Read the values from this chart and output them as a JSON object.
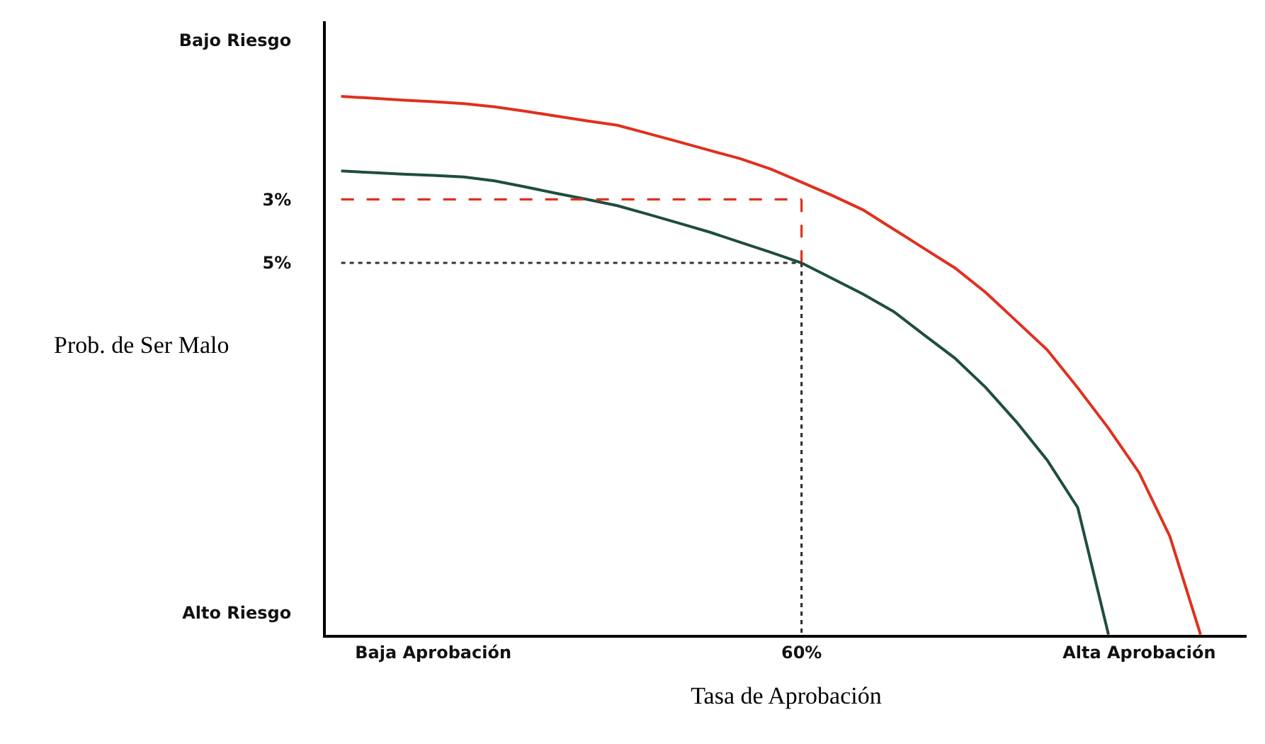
{
  "chart_data": {
    "type": "line",
    "xlabel": "Tasa de Aprobación",
    "ylabel": "Prob. de Ser Malo",
    "categories": [
      null,
      null,
      null,
      "Baja Aprobación",
      null,
      null,
      null,
      null,
      null,
      null,
      null,
      null,
      null,
      null,
      null,
      "60%",
      null,
      null,
      null,
      null,
      null,
      null,
      null,
      null,
      null,
      null,
      "Alta Aprobación",
      null,
      null,
      null
    ],
    "ylim": [
      16.7,
      -2.6
    ],
    "yticks": [
      {
        "value": -2,
        "label": "Bajo Riesgo"
      },
      {
        "value": 3,
        "label": "3%"
      },
      {
        "value": 5,
        "label": "5%"
      },
      {
        "value": 16,
        "label": "Alto Riesgo"
      }
    ],
    "grid": false,
    "marker": "none",
    "series": [
      {
        "color": "#e0301e",
        "line_style": "solid",
        "values": [
          -0.24,
          -0.18,
          -0.12,
          -0.07,
          -0.01,
          0.09,
          0.23,
          0.38,
          0.53,
          0.67,
          0.93,
          1.19,
          1.46,
          1.72,
          2.05,
          2.46,
          2.88,
          3.33,
          3.94,
          4.55,
          5.16,
          5.93,
          6.83,
          7.73,
          8.93,
          10.2,
          11.6,
          13.6,
          16.69,
          null
        ]
      },
      {
        "color": "#1f4e3d",
        "line_style": "solid",
        "values": [
          2.11,
          2.16,
          2.21,
          2.25,
          2.3,
          2.42,
          2.61,
          2.81,
          3.0,
          3.2,
          3.47,
          3.75,
          4.03,
          4.35,
          4.67,
          5.0,
          5.49,
          5.98,
          6.53,
          7.27,
          8.0,
          8.92,
          10.0,
          11.2,
          12.7,
          16.69,
          null,
          null,
          null,
          null
        ]
      },
      {
        "color": "#e0301e",
        "line_style": "dashed",
        "values": [
          3,
          3,
          3,
          3,
          3,
          3,
          3,
          3,
          3,
          3,
          3,
          3,
          3,
          3,
          3,
          3,
          null,
          null,
          null,
          null,
          null,
          null,
          null,
          null,
          null,
          null,
          null,
          null,
          null,
          null
        ]
      },
      {
        "color": "#e0301e",
        "line_style": "dashed",
        "x": [
          "60%",
          "60%"
        ],
        "values": [
          3,
          5
        ]
      },
      {
        "color": "#333333",
        "line_style": "dotted",
        "values": [
          5,
          5,
          5,
          5,
          5,
          5,
          5,
          5,
          5,
          5,
          5,
          5,
          5,
          5,
          5,
          5,
          null,
          null,
          null,
          null,
          null,
          null,
          null,
          null,
          null,
          null,
          null,
          null,
          null,
          null
        ]
      },
      {
        "color": "#333333",
        "line_style": "dotted",
        "x": [
          "60%",
          "60%"
        ],
        "values": [
          5,
          16.69
        ]
      }
    ]
  }
}
